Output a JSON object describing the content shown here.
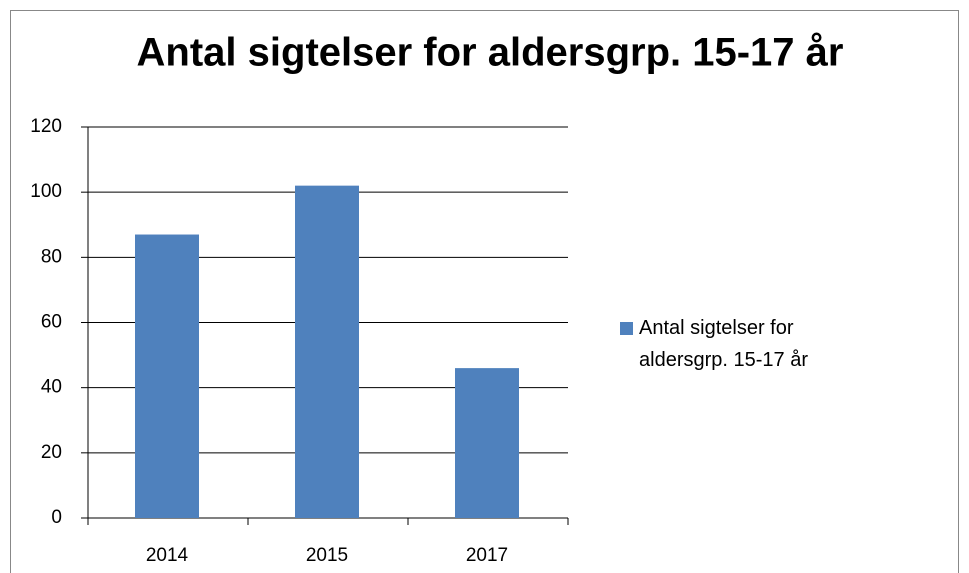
{
  "chart_data": {
    "type": "bar",
    "title": "Antal sigtelser for aldersgrp. 15-17 år",
    "categories": [
      "2014",
      "2015",
      "2017"
    ],
    "series": [
      {
        "name": "Antal sigtelser for aldersgrp. 15-17 år",
        "color": "#4f81bd",
        "values": [
          87,
          102,
          46
        ]
      }
    ],
    "ylim": [
      0,
      120
    ],
    "yticks": [
      0,
      20,
      40,
      60,
      80,
      100,
      120
    ],
    "grid": true,
    "legend": "right"
  }
}
